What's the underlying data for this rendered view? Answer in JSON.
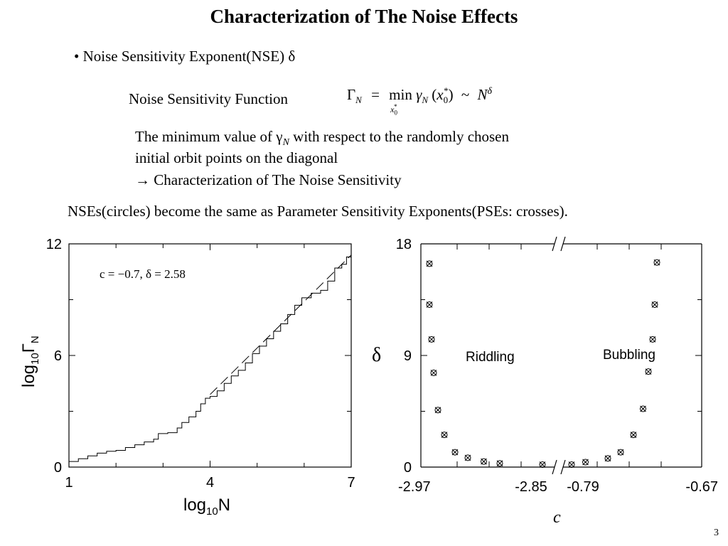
{
  "slide": {
    "title": "Characterization of The Noise Effects",
    "bullet": "• Noise Sensitivity Exponent(NSE) δ",
    "nsf_label": "Noise Sensitivity Function",
    "formula": {
      "lhs": "Γ",
      "lhs_sub": "N",
      "eq": "=",
      "min": "min",
      "min_sub": "x",
      "min_sub_sub": "0",
      "min_sub_sup": "*",
      "gamma": "γ",
      "gamma_sub": "N",
      "arg_open": "(",
      "arg": "x",
      "arg_sub": "0",
      "arg_sup": "*",
      "arg_close": ")",
      "tilde": "~",
      "rhs": "N",
      "rhs_sup": "δ"
    },
    "desc_line1_a": "The minimum value of ",
    "desc_line1_gamma": "γ",
    "desc_line1_sub": "N",
    "desc_line1_b": " with respect to the randomly chosen",
    "desc_line2": "initial orbit points on the diagonal",
    "desc_line3": "→ Characterization of The Noise Sensitivity",
    "nses_text": "NSEs(circles) become the same as Parameter Sensitivity Exponents(PSEs: crosses).",
    "slide_number": "3"
  },
  "chart_data": [
    {
      "type": "line",
      "xlabel_main": "log",
      "xlabel_sub": "10",
      "xlabel_tail": "N",
      "ylabel_main": "log",
      "ylabel_sub": "10",
      "ylabel_gamma": "Γ",
      "ylabel_gsub": "N",
      "xlim": [
        1,
        7
      ],
      "ylim": [
        0,
        12
      ],
      "xticks": [
        1,
        4,
        7
      ],
      "yticks": [
        0,
        6,
        12
      ],
      "x_tick_labels": [
        "1",
        "4",
        "7"
      ],
      "y_tick_labels": [
        "0",
        "6",
        "12"
      ],
      "annotation": "c = −0.7, δ = 2.58",
      "series": [
        {
          "style": "staircase",
          "points": [
            [
              1.0,
              0.3
            ],
            [
              1.2,
              0.45
            ],
            [
              1.4,
              0.6
            ],
            [
              1.6,
              0.75
            ],
            [
              1.8,
              0.85
            ],
            [
              2.0,
              0.9
            ],
            [
              2.2,
              1.05
            ],
            [
              2.4,
              1.2
            ],
            [
              2.6,
              1.35
            ],
            [
              2.8,
              1.5
            ],
            [
              2.9,
              1.8
            ],
            [
              3.1,
              1.85
            ],
            [
              3.3,
              2.1
            ],
            [
              3.4,
              2.4
            ],
            [
              3.55,
              2.7
            ],
            [
              3.7,
              3.0
            ],
            [
              3.8,
              3.4
            ],
            [
              3.9,
              3.7
            ],
            [
              4.0,
              3.8
            ],
            [
              4.15,
              4.1
            ],
            [
              4.3,
              4.5
            ],
            [
              4.45,
              4.9
            ],
            [
              4.6,
              5.2
            ],
            [
              4.75,
              5.6
            ],
            [
              4.9,
              6.1
            ],
            [
              5.05,
              6.5
            ],
            [
              5.2,
              6.9
            ],
            [
              5.35,
              7.3
            ],
            [
              5.5,
              7.7
            ],
            [
              5.65,
              8.2
            ],
            [
              5.8,
              8.7
            ],
            [
              5.95,
              9.1
            ],
            [
              6.15,
              9.35
            ],
            [
              6.35,
              9.5
            ],
            [
              6.5,
              10.0
            ],
            [
              6.65,
              10.7
            ],
            [
              6.8,
              10.9
            ],
            [
              6.9,
              11.3
            ],
            [
              7.0,
              11.5
            ]
          ]
        },
        {
          "style": "dashed",
          "points": [
            [
              4.0,
              3.9
            ],
            [
              7.0,
              11.4
            ]
          ]
        }
      ]
    },
    {
      "type": "scatter",
      "ylabel": "δ",
      "xlabel": "c",
      "ylim": [
        0,
        18
      ],
      "yticks": [
        0,
        9,
        18
      ],
      "y_tick_labels": [
        "0",
        "9",
        "18"
      ],
      "x_tick_labels": [
        "-2.97",
        "-2.85",
        "-0.79",
        "-0.67"
      ],
      "axis_break": "//",
      "x_segments": [
        {
          "range": [
            -2.97,
            -2.85
          ],
          "label": "Riddling"
        },
        {
          "range": [
            -0.79,
            -0.67
          ],
          "label": "Bubbling"
        }
      ],
      "series": [
        {
          "marker": "circle-cross",
          "points": [
            [
              -2.966,
              16.4
            ],
            [
              -2.966,
              13.1
            ],
            [
              -2.964,
              10.3
            ],
            [
              -2.962,
              7.6
            ],
            [
              -2.958,
              4.6
            ],
            [
              -2.952,
              2.6
            ],
            [
              -2.942,
              1.2
            ],
            [
              -2.93,
              0.75
            ],
            [
              -2.915,
              0.45
            ],
            [
              -2.9,
              0.3
            ],
            [
              -2.86,
              0.2
            ],
            [
              -0.784,
              0.2
            ],
            [
              -0.771,
              0.4
            ],
            [
              -0.75,
              0.7
            ],
            [
              -0.738,
              1.2
            ],
            [
              -0.726,
              2.6
            ],
            [
              -0.717,
              4.7
            ],
            [
              -0.712,
              7.7
            ],
            [
              -0.708,
              10.3
            ],
            [
              -0.706,
              13.1
            ],
            [
              -0.704,
              16.5
            ]
          ]
        }
      ]
    }
  ]
}
